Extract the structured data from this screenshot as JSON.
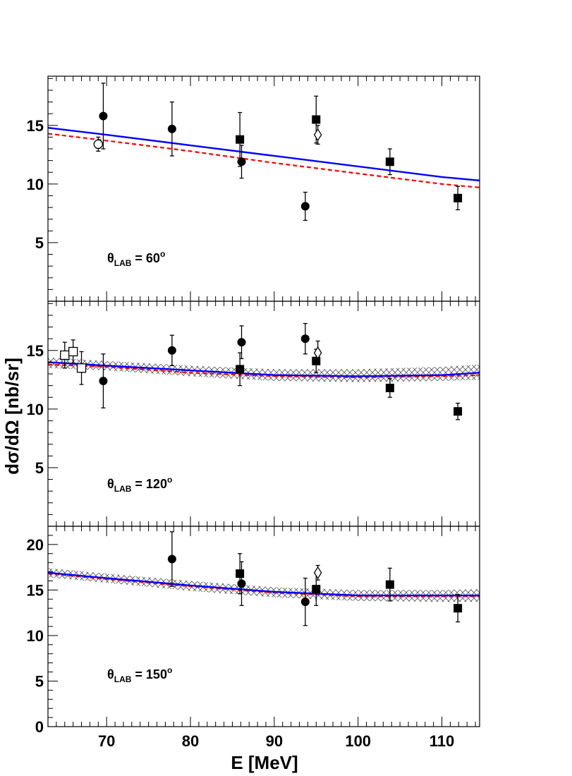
{
  "chart_data": {
    "type": "scatter",
    "xlabel": "E [MeV]",
    "ylabel": "dσ/dΩ [nb/sr]",
    "xlim": [
      63,
      114.5
    ],
    "x_ticks": [
      "70",
      "80",
      "90",
      "100",
      "110"
    ],
    "panels": [
      {
        "angle_label": {
          "theta": "θ",
          "sub": "LAB",
          "value": " = 60",
          "sup": "o"
        },
        "ylim": [
          0,
          19.2
        ],
        "y_ticks": [
          "5",
          "10",
          "15"
        ],
        "series": [
          {
            "marker": "filled-circle",
            "points": [
              {
                "x": 69.6,
                "y": 15.8,
                "err": 2.8
              },
              {
                "x": 77.8,
                "y": 14.7,
                "err": 2.3
              },
              {
                "x": 86.1,
                "y": 11.9,
                "err": 1.4
              },
              {
                "x": 93.7,
                "y": 8.1,
                "err": 1.2
              }
            ]
          },
          {
            "marker": "filled-square",
            "points": [
              {
                "x": 85.9,
                "y": 13.8,
                "err": 2.3
              },
              {
                "x": 95.0,
                "y": 15.5,
                "err": 2.0
              },
              {
                "x": 103.8,
                "y": 11.9,
                "err": 1.1
              },
              {
                "x": 111.9,
                "y": 8.8,
                "err": 1.0
              }
            ]
          },
          {
            "marker": "open-circle",
            "points": [
              {
                "x": 69.0,
                "y": 13.4,
                "err": 0.6
              }
            ]
          },
          {
            "marker": "open-diamond",
            "points": [
              {
                "x": 95.2,
                "y": 14.2,
                "err": 0.8
              }
            ]
          }
        ],
        "curves": [
          {
            "color": "#0000ff",
            "style": "solid",
            "x": [
              63,
              70,
              80,
              90,
              100,
              110,
              114.5
            ],
            "y": [
              14.8,
              14.2,
              13.3,
              12.4,
              11.5,
              10.6,
              10.3
            ]
          },
          {
            "color": "#ff0000",
            "style": "dashed",
            "x": [
              63,
              70,
              80,
              90,
              100,
              110,
              114.5
            ],
            "y": [
              14.3,
              13.7,
              12.8,
              11.8,
              10.9,
              10.0,
              9.7
            ]
          }
        ]
      },
      {
        "angle_label": {
          "theta": "θ",
          "sub": "LAB",
          "value": " = 120",
          "sup": "o"
        },
        "ylim": [
          0,
          19.2
        ],
        "y_ticks": [
          "5",
          "10",
          "15"
        ],
        "series": [
          {
            "marker": "filled-circle",
            "points": [
              {
                "x": 69.6,
                "y": 12.4,
                "err": 2.3
              },
              {
                "x": 77.8,
                "y": 15.0,
                "err": 1.3
              },
              {
                "x": 86.1,
                "y": 15.7,
                "err": 1.4
              },
              {
                "x": 93.7,
                "y": 16.0,
                "err": 1.3
              }
            ]
          },
          {
            "marker": "filled-square",
            "points": [
              {
                "x": 85.9,
                "y": 13.4,
                "err": 1.4
              },
              {
                "x": 95.0,
                "y": 14.1,
                "err": 1.0
              },
              {
                "x": 103.8,
                "y": 11.8,
                "err": 0.8
              },
              {
                "x": 111.9,
                "y": 9.8,
                "err": 0.7
              }
            ]
          },
          {
            "marker": "open-square",
            "points": [
              {
                "x": 65.0,
                "y": 14.6,
                "err": 1.1
              },
              {
                "x": 66.0,
                "y": 14.9,
                "err": 1.0
              },
              {
                "x": 67.0,
                "y": 13.5,
                "err": 1.4
              }
            ]
          },
          {
            "marker": "open-diamond",
            "points": [
              {
                "x": 95.2,
                "y": 14.8,
                "err": 1.0
              }
            ]
          }
        ],
        "bands": [
          {
            "x": [
              63,
              70,
              80,
              90,
              100,
              110,
              114.5
            ],
            "lo": [
              13.5,
              13.3,
              12.8,
              12.4,
              12.3,
              12.4,
              12.5
            ],
            "hi": [
              14.4,
              14.1,
              13.7,
              13.4,
              13.4,
              13.6,
              13.8
            ]
          }
        ],
        "curves": [
          {
            "color": "#ff0000",
            "style": "dashed",
            "x": [
              63,
              70,
              80,
              90,
              100,
              110,
              114.5
            ],
            "y": [
              13.8,
              13.6,
              13.1,
              12.8,
              12.7,
              12.8,
              12.9
            ]
          },
          {
            "color": "#0000ff",
            "style": "solid",
            "x": [
              63,
              70,
              80,
              90,
              100,
              110,
              114.5
            ],
            "y": [
              14.0,
              13.7,
              13.3,
              12.9,
              12.8,
              12.9,
              13.1
            ]
          }
        ]
      },
      {
        "angle_label": {
          "theta": "θ",
          "sub": "LAB",
          "value": " = 150",
          "sup": "o"
        },
        "ylim": [
          0,
          22
        ],
        "y_ticks": [
          "0",
          "5",
          "10",
          "15",
          "20"
        ],
        "series": [
          {
            "marker": "filled-circle",
            "points": [
              {
                "x": 77.8,
                "y": 18.4,
                "err": 3.0
              },
              {
                "x": 86.1,
                "y": 15.7,
                "err": 2.4
              },
              {
                "x": 93.7,
                "y": 13.7,
                "err": 2.6
              }
            ]
          },
          {
            "marker": "filled-square",
            "points": [
              {
                "x": 85.9,
                "y": 16.8,
                "err": 2.2
              },
              {
                "x": 95.0,
                "y": 15.1,
                "err": 1.8
              },
              {
                "x": 103.8,
                "y": 15.6,
                "err": 1.8
              },
              {
                "x": 111.9,
                "y": 13.0,
                "err": 1.5
              }
            ]
          },
          {
            "marker": "open-diamond",
            "points": [
              {
                "x": 95.2,
                "y": 16.9,
                "err": 0.8
              }
            ]
          }
        ],
        "bands": [
          {
            "x": [
              63,
              70,
              80,
              90,
              100,
              110,
              114.5
            ],
            "lo": [
              16.4,
              15.8,
              14.9,
              14.2,
              13.8,
              13.7,
              13.7
            ],
            "hi": [
              17.4,
              16.8,
              16.0,
              15.3,
              15.0,
              15.0,
              15.1
            ]
          }
        ],
        "curves": [
          {
            "color": "#ff0000",
            "style": "dashed",
            "x": [
              63,
              70,
              80,
              90,
              100,
              110,
              114.5
            ],
            "y": [
              16.8,
              16.2,
              15.4,
              14.7,
              14.3,
              14.3,
              14.3
            ]
          },
          {
            "color": "#0000ff",
            "style": "solid",
            "x": [
              63,
              70,
              80,
              90,
              100,
              110,
              114.5
            ],
            "y": [
              16.9,
              16.3,
              15.5,
              14.8,
              14.4,
              14.4,
              14.4
            ]
          }
        ]
      }
    ]
  }
}
